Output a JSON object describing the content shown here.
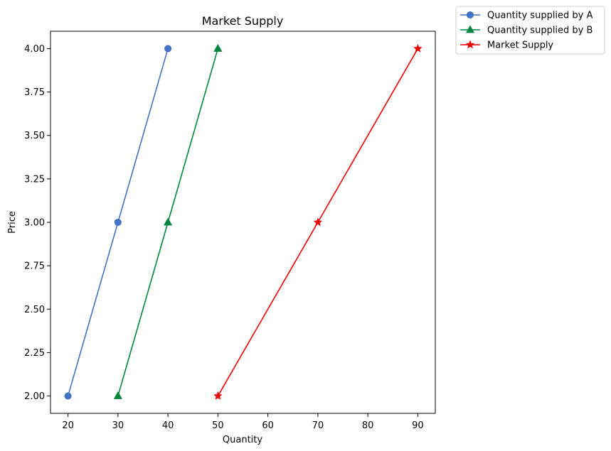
{
  "chart_data": {
    "type": "line",
    "title": "Market Supply",
    "xlabel": "Quantity",
    "ylabel": "Price",
    "xlim": [
      16.5,
      93.5
    ],
    "ylim": [
      1.9,
      4.1
    ],
    "xticks": [
      20,
      30,
      40,
      50,
      60,
      70,
      80,
      90
    ],
    "yticks": [
      2.0,
      2.25,
      2.5,
      2.75,
      3.0,
      3.25,
      3.5,
      3.75,
      4.0
    ],
    "xtick_labels": [
      "20",
      "30",
      "40",
      "50",
      "60",
      "70",
      "80",
      "90"
    ],
    "ytick_labels": [
      "2.00",
      "2.25",
      "2.50",
      "2.75",
      "3.00",
      "3.25",
      "3.50",
      "3.75",
      "4.00"
    ],
    "grid": false,
    "legend_position": "outside-top-right",
    "series": [
      {
        "name": "Quantity supplied by A",
        "x": [
          20,
          30,
          40
        ],
        "y": [
          2,
          3,
          4
        ],
        "color": "#4472c4",
        "marker": "circle"
      },
      {
        "name": "Quantity supplied by B",
        "x": [
          30,
          40,
          50
        ],
        "y": [
          2,
          3,
          4
        ],
        "color": "#00873e",
        "marker": "triangle"
      },
      {
        "name": "Market Supply",
        "x": [
          50,
          70,
          90
        ],
        "y": [
          2,
          3,
          4
        ],
        "color": "#ee0000",
        "marker": "star"
      }
    ]
  }
}
